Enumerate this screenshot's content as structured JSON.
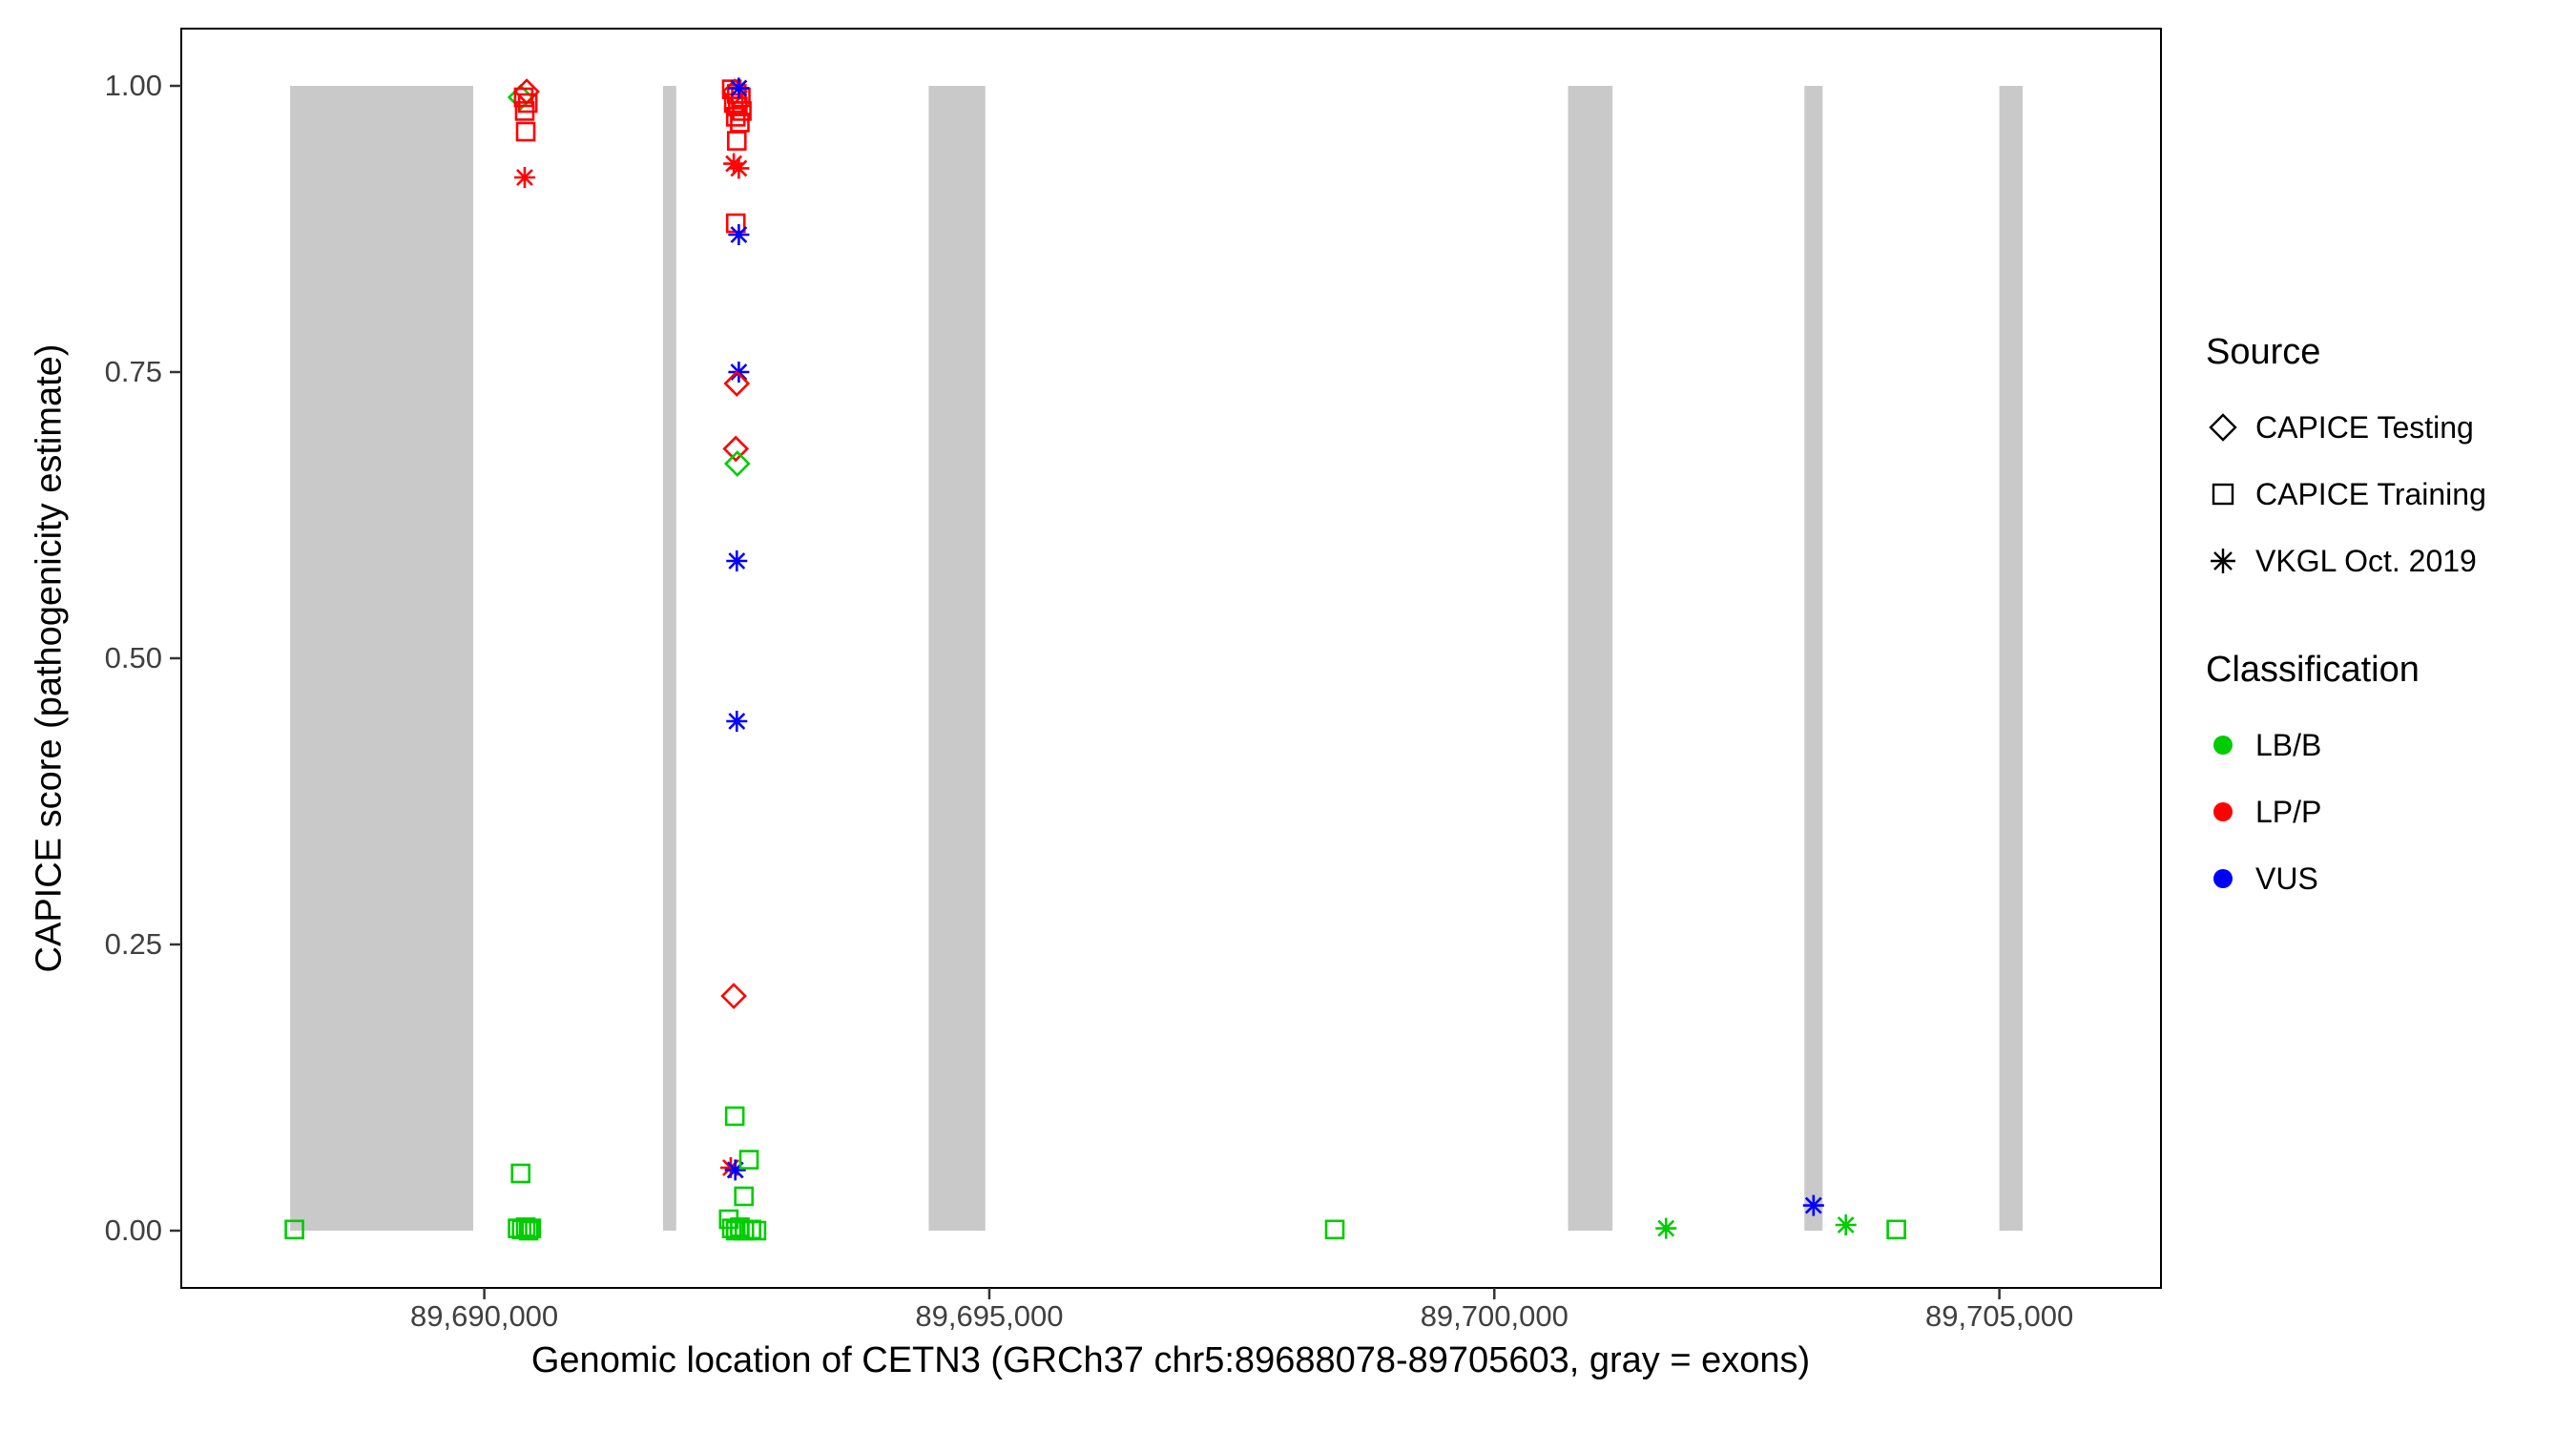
{
  "chart_data": {
    "type": "scatter",
    "title": "",
    "xlabel": "Genomic location of CETN3 (GRCh37 chr5:89688078-89705603, gray = exons)",
    "ylabel": "CAPICE score (pathogenicity estimate)",
    "xlim": [
      89687000,
      89706600
    ],
    "ylim": [
      0,
      1
    ],
    "y_expansion": 0.05,
    "grid": "off",
    "x_ticks": [
      {
        "value": 89690000,
        "label": "89,690,000"
      },
      {
        "value": 89695000,
        "label": "89,695,000"
      },
      {
        "value": 89700000,
        "label": "89,700,000"
      },
      {
        "value": 89705000,
        "label": "89,705,000"
      }
    ],
    "y_ticks": [
      {
        "value": 0.0,
        "label": "0.00"
      },
      {
        "value": 0.25,
        "label": "0.25"
      },
      {
        "value": 0.5,
        "label": "0.50"
      },
      {
        "value": 0.75,
        "label": "0.75"
      },
      {
        "value": 1.0,
        "label": "1.00"
      }
    ],
    "exon_color": "#C9C9C9",
    "exons": [
      [
        89688078,
        89689890
      ],
      [
        89691770,
        89691900
      ],
      [
        89694400,
        89694960
      ],
      [
        89700730,
        89701170
      ],
      [
        89703070,
        89703250
      ],
      [
        89705000,
        89705230
      ]
    ],
    "legend": {
      "source_title": "Source",
      "sources": [
        {
          "name": "CAPICE Testing",
          "shape": "diamond"
        },
        {
          "name": "CAPICE Training",
          "shape": "square"
        },
        {
          "name": "VKGL Oct. 2019",
          "shape": "asterisk"
        }
      ],
      "classification_title": "Classification",
      "classifications": [
        {
          "name": "LB/B",
          "color": "#00CC00"
        },
        {
          "name": "LP/P",
          "color": "#FF0000"
        },
        {
          "name": "VUS",
          "color": "#0000FF"
        }
      ]
    },
    "points": [
      {
        "x": 89690360,
        "y": 0.99,
        "source": "CAPICE Testing",
        "class": "LB/B"
      },
      {
        "x": 89690390,
        "y": 0.99,
        "source": "CAPICE Training",
        "class": "LP/P"
      },
      {
        "x": 89690430,
        "y": 0.985,
        "source": "CAPICE Training",
        "class": "LP/P"
      },
      {
        "x": 89690420,
        "y": 0.995,
        "source": "CAPICE Testing",
        "class": "LP/P"
      },
      {
        "x": 89690400,
        "y": 0.978,
        "source": "CAPICE Training",
        "class": "LP/P"
      },
      {
        "x": 89690410,
        "y": 0.96,
        "source": "CAPICE Training",
        "class": "LP/P"
      },
      {
        "x": 89690400,
        "y": 0.92,
        "source": "VKGL Oct. 2019",
        "class": "LP/P"
      },
      {
        "x": 89690360,
        "y": 0.05,
        "source": "CAPICE Training",
        "class": "LB/B"
      },
      {
        "x": 89690330,
        "y": 0.002,
        "source": "CAPICE Training",
        "class": "LB/B"
      },
      {
        "x": 89690370,
        "y": 0.001,
        "source": "CAPICE Training",
        "class": "LB/B"
      },
      {
        "x": 89690410,
        "y": 0.003,
        "source": "CAPICE Training",
        "class": "LB/B"
      },
      {
        "x": 89690440,
        "y": 0.0,
        "source": "CAPICE Training",
        "class": "LB/B"
      },
      {
        "x": 89690465,
        "y": 0.002,
        "source": "CAPICE Training",
        "class": "LB/B"
      },
      {
        "x": 89692450,
        "y": 0.997,
        "source": "CAPICE Training",
        "class": "LP/P"
      },
      {
        "x": 89692500,
        "y": 0.993,
        "source": "CAPICE Training",
        "class": "LP/P"
      },
      {
        "x": 89692540,
        "y": 0.99,
        "source": "CAPICE Training",
        "class": "LP/P"
      },
      {
        "x": 89692470,
        "y": 0.985,
        "source": "CAPICE Training",
        "class": "LP/P"
      },
      {
        "x": 89692510,
        "y": 0.982,
        "source": "CAPICE Training",
        "class": "LP/P"
      },
      {
        "x": 89692550,
        "y": 0.978,
        "source": "CAPICE Training",
        "class": "LP/P"
      },
      {
        "x": 89692490,
        "y": 0.973,
        "source": "CAPICE Training",
        "class": "LP/P"
      },
      {
        "x": 89692530,
        "y": 0.968,
        "source": "CAPICE Training",
        "class": "LP/P"
      },
      {
        "x": 89692480,
        "y": 0.995,
        "source": "CAPICE Testing",
        "class": "LP/P"
      },
      {
        "x": 89692520,
        "y": 0.998,
        "source": "VKGL Oct. 2019",
        "class": "VUS"
      },
      {
        "x": 89692500,
        "y": 0.952,
        "source": "CAPICE Training",
        "class": "LP/P"
      },
      {
        "x": 89692470,
        "y": 0.932,
        "source": "VKGL Oct. 2019",
        "class": "LP/P"
      },
      {
        "x": 89692520,
        "y": 0.928,
        "source": "VKGL Oct. 2019",
        "class": "LP/P"
      },
      {
        "x": 89692490,
        "y": 0.88,
        "source": "CAPICE Training",
        "class": "LP/P"
      },
      {
        "x": 89692520,
        "y": 0.87,
        "source": "VKGL Oct. 2019",
        "class": "VUS"
      },
      {
        "x": 89692520,
        "y": 0.75,
        "source": "VKGL Oct. 2019",
        "class": "VUS"
      },
      {
        "x": 89692500,
        "y": 0.74,
        "source": "CAPICE Testing",
        "class": "LP/P"
      },
      {
        "x": 89692490,
        "y": 0.683,
        "source": "CAPICE Testing",
        "class": "LP/P"
      },
      {
        "x": 89692505,
        "y": 0.67,
        "source": "CAPICE Testing",
        "class": "LB/B"
      },
      {
        "x": 89692500,
        "y": 0.585,
        "source": "VKGL Oct. 2019",
        "class": "VUS"
      },
      {
        "x": 89692500,
        "y": 0.445,
        "source": "VKGL Oct. 2019",
        "class": "VUS"
      },
      {
        "x": 89692470,
        "y": 0.205,
        "source": "CAPICE Testing",
        "class": "LP/P"
      },
      {
        "x": 89692480,
        "y": 0.1,
        "source": "CAPICE Training",
        "class": "LB/B"
      },
      {
        "x": 89692440,
        "y": 0.055,
        "source": "VKGL Oct. 2019",
        "class": "LP/P"
      },
      {
        "x": 89692485,
        "y": 0.053,
        "source": "VKGL Oct. 2019",
        "class": "VUS"
      },
      {
        "x": 89692620,
        "y": 0.062,
        "source": "CAPICE Training",
        "class": "LB/B"
      },
      {
        "x": 89692570,
        "y": 0.03,
        "source": "CAPICE Training",
        "class": "LB/B"
      },
      {
        "x": 89692420,
        "y": 0.01,
        "source": "CAPICE Training",
        "class": "LB/B"
      },
      {
        "x": 89692450,
        "y": 0.002,
        "source": "CAPICE Training",
        "class": "LB/B"
      },
      {
        "x": 89692490,
        "y": 0.0,
        "source": "CAPICE Training",
        "class": "LB/B"
      },
      {
        "x": 89692530,
        "y": 0.003,
        "source": "CAPICE Training",
        "class": "LB/B"
      },
      {
        "x": 89692575,
        "y": 0.0,
        "source": "CAPICE Training",
        "class": "LB/B"
      },
      {
        "x": 89692645,
        "y": 0.001,
        "source": "CAPICE Training",
        "class": "LB/B"
      },
      {
        "x": 89692695,
        "y": 0.0,
        "source": "CAPICE Training",
        "class": "LB/B"
      },
      {
        "x": 89688120,
        "y": 0.001,
        "source": "CAPICE Training",
        "class": "LB/B"
      },
      {
        "x": 89698420,
        "y": 0.001,
        "source": "CAPICE Training",
        "class": "LB/B"
      },
      {
        "x": 89701700,
        "y": 0.002,
        "source": "VKGL Oct. 2019",
        "class": "LB/B"
      },
      {
        "x": 89703160,
        "y": 0.022,
        "source": "VKGL Oct. 2019",
        "class": "VUS"
      },
      {
        "x": 89703480,
        "y": 0.005,
        "source": "VKGL Oct. 2019",
        "class": "LB/B"
      },
      {
        "x": 89703980,
        "y": 0.001,
        "source": "CAPICE Training",
        "class": "LB/B"
      }
    ]
  }
}
